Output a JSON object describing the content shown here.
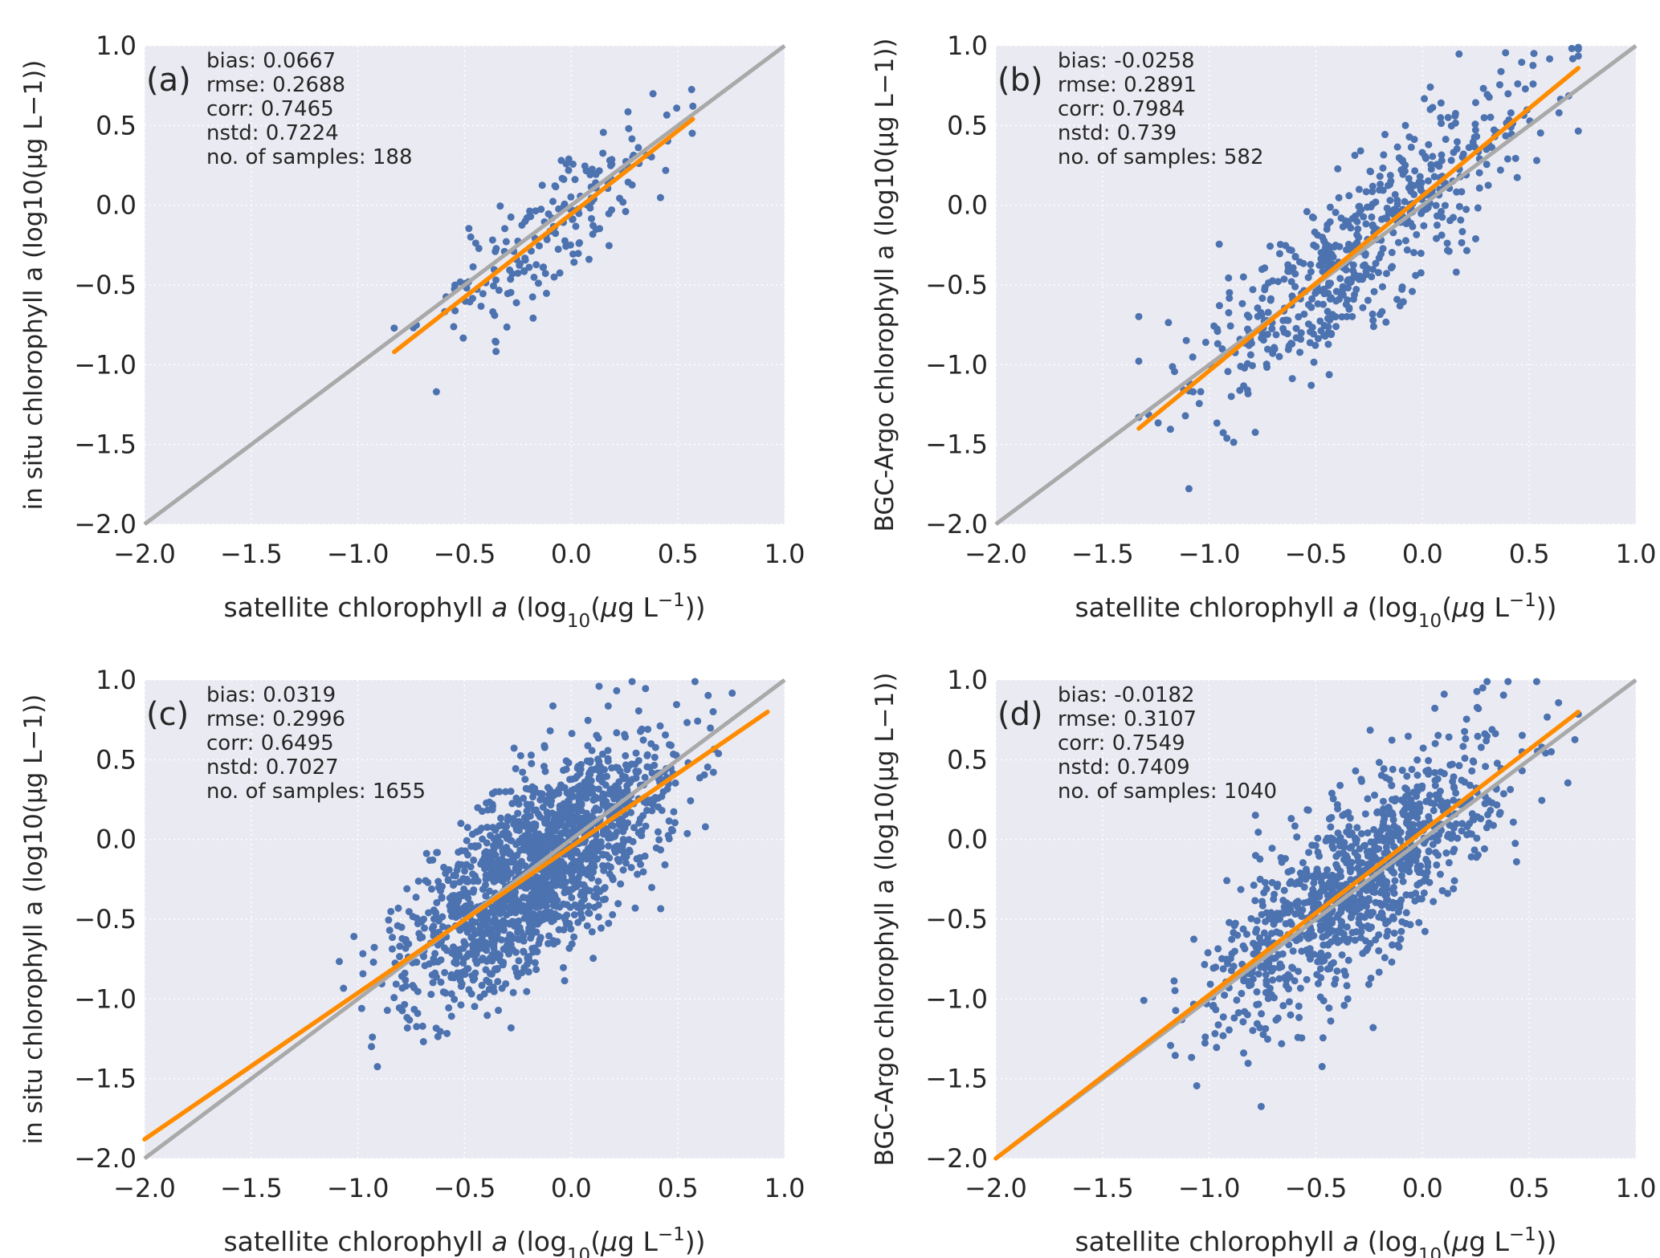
{
  "chart_data": [
    {
      "type": "scatter",
      "panel": "(a)",
      "xlabel": "satellite chlorophyll a (log10(μg L−1))",
      "ylabel": "in situ chlorophyll a (log10(μg L−1))",
      "xlim": [
        -2,
        1
      ],
      "ylim": [
        -2,
        1
      ],
      "ticks": [
        "−2.0",
        "−1.5",
        "−1.0",
        "−0.5",
        "0.0",
        "0.5",
        "1.0"
      ],
      "tick_values": [
        -2,
        -1.5,
        -1,
        -0.5,
        0,
        0.5,
        1
      ],
      "stats": [
        "bias: 0.0667",
        "rmse: 0.2688",
        "corr: 0.7465",
        "nstd: 0.7224",
        "no. of samples: 188"
      ],
      "n": 188,
      "x_mean": -0.1,
      "x_sd": 0.28,
      "x_range": [
        -0.83,
        0.57
      ],
      "noise_sd": 0.2,
      "seed": 11,
      "fit_line": [
        [
          -0.83,
          -0.92
        ],
        [
          0.57,
          0.54
        ]
      ],
      "identity_line": [
        [
          -2,
          -2
        ],
        [
          1,
          1
        ]
      ]
    },
    {
      "type": "scatter",
      "panel": "(b)",
      "xlabel": "satellite chlorophyll a (log10(μg L−1))",
      "ylabel": "BGC-Argo chlorophyll a (log10(μg L−1))",
      "xlim": [
        -2,
        1
      ],
      "ylim": [
        -2,
        1
      ],
      "ticks": [
        "−2.0",
        "−1.5",
        "−1.0",
        "−0.5",
        "0.0",
        "0.5",
        "1.0"
      ],
      "tick_values": [
        -2,
        -1.5,
        -1,
        -0.5,
        0,
        0.5,
        1
      ],
      "stats": [
        "bias: -0.0258",
        "rmse: 0.2891",
        "corr: 0.7984",
        "nstd: 0.739",
        "no. of samples: 582"
      ],
      "n": 582,
      "x_mean": -0.3,
      "x_sd": 0.4,
      "x_range": [
        -1.33,
        0.73
      ],
      "noise_sd": 0.26,
      "seed": 23,
      "fit_line": [
        [
          -1.33,
          -1.4
        ],
        [
          0.73,
          0.86
        ]
      ],
      "identity_line": [
        [
          -2,
          -2
        ],
        [
          1,
          1
        ]
      ]
    },
    {
      "type": "scatter",
      "panel": "(c)",
      "xlabel": "satellite chlorophyll a (log10(μg L−1))",
      "ylabel": "in situ chlorophyll a (log10(μg L−1))",
      "xlim": [
        -2,
        1
      ],
      "ylim": [
        -2,
        1
      ],
      "ticks": [
        "−2.0",
        "−1.5",
        "−1.0",
        "−0.5",
        "0.0",
        "0.5",
        "1.0"
      ],
      "tick_values": [
        -2,
        -1.5,
        -1,
        -0.5,
        0,
        0.5,
        1
      ],
      "stats": [
        "bias: 0.0319",
        "rmse: 0.2996",
        "corr: 0.6495",
        "nstd: 0.7027",
        "no. of samples: 1655"
      ],
      "n": 1655,
      "x_mean": -0.15,
      "x_sd": 0.3,
      "x_range": [
        -1.3,
        0.92
      ],
      "noise_sd": 0.28,
      "seed": 37,
      "fit_line": [
        [
          -2,
          -1.88
        ],
        [
          0.92,
          0.8
        ]
      ],
      "identity_line": [
        [
          -2,
          -2
        ],
        [
          1,
          1
        ]
      ]
    },
    {
      "type": "scatter",
      "panel": "(d)",
      "xlabel": "satellite chlorophyll a (log10(μg L−1))",
      "ylabel": "BGC-Argo chlorophyll a (log10(μg L−1))",
      "xlim": [
        -2,
        1
      ],
      "ylim": [
        -2,
        1
      ],
      "ticks": [
        "−2.0",
        "−1.5",
        "−1.0",
        "−0.5",
        "0.0",
        "0.5",
        "1.0"
      ],
      "tick_values": [
        -2,
        -1.5,
        -1,
        -0.5,
        0,
        0.5,
        1
      ],
      "stats": [
        "bias: -0.0182",
        "rmse: 0.3107",
        "corr: 0.7549",
        "nstd: 0.7409",
        "no. of samples: 1040"
      ],
      "n": 1040,
      "x_mean": -0.3,
      "x_sd": 0.33,
      "x_range": [
        -1.55,
        0.73
      ],
      "noise_sd": 0.28,
      "seed": 53,
      "fit_line": [
        [
          -2,
          -2
        ],
        [
          0.73,
          0.8
        ]
      ],
      "identity_line": [
        [
          -2,
          -2
        ],
        [
          1,
          1
        ]
      ]
    }
  ],
  "colors": {
    "background": "#EAEAF2",
    "points": "#4C72B0",
    "fit": "#FF8C00",
    "identity": "#A9A9A9",
    "grid": "#FFFFFF"
  }
}
